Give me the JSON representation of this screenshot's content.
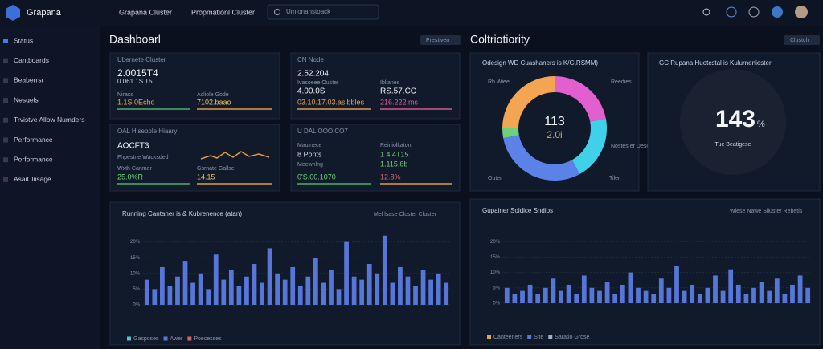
{
  "header": {
    "brand": "Grapana",
    "tabs": [
      "Grapana Cluster",
      "Propmationl Cluster"
    ],
    "search": "Umionanstoack"
  },
  "sidebar": {
    "items": [
      "Status",
      "Cantboards",
      "Beaberrsr",
      "Nesgels",
      "Trvistve Allow Numders",
      "Performance",
      "Performance",
      "AsaiCliisage"
    ]
  },
  "dashboard": {
    "title": "Dashboarl",
    "button": "Prestiven"
  },
  "stat_panels": [
    {
      "title": "Ubernete Cluster",
      "primary": "2.0015T4",
      "secondary": "0.061.1S.T5",
      "left_label": "Nirass",
      "left_value": "1.1S.0Echo",
      "right_label": "Acliole Gode",
      "right_value": "7102.baao"
    },
    {
      "title": "CN Node",
      "primary": "2.52.204",
      "left_label": "Ivasoeee Ouster",
      "left_big": "4.00.0S",
      "right_label": "Iblianes",
      "right_big": "RS.57.CO",
      "left_value": "03.10.17.03.aslbbles",
      "right_value": "216.222.ms"
    },
    {
      "title": "OAL Hiseople Hiaary",
      "primary": "AOCFT3",
      "secondary": "Fhpestrle Wacksded",
      "left_label": "Wxth Canmer",
      "left_value": "25.0%R",
      "right_label": "Gsrnate Gallse",
      "right_value": "14.15"
    },
    {
      "title": "U DAL OOO.CO7",
      "left_label": "Maulnece",
      "right_label": "Reiniolkaton",
      "left_big": "8 Ponts",
      "right_big": "1 4 4T15",
      "left_sub": "Meewnlng",
      "right_sub": "1.115.6b",
      "left_value": "0'S.00.1070",
      "right_value": "12.8%"
    }
  ],
  "connectivity": {
    "title": "Coltriotiority",
    "button": "Clustch"
  },
  "donut": {
    "title": "Odesign WD Cuashaners is K/G,RSMM)",
    "center_value": "113",
    "center_sub": "2.0i",
    "labels": [
      "Rb Wiee",
      "Reedies",
      "Nostes er Descaller",
      "Outer",
      "Tiler"
    ],
    "values": [
      22,
      20,
      30,
      3,
      25
    ],
    "colors": [
      "#e25fd0",
      "#3fd0ea",
      "#5b82e6",
      "#6fcf7a",
      "#f3a552"
    ]
  },
  "gauge": {
    "title": "GC Rupana Huotcstal is Kulurneniester",
    "value": "143",
    "unit": "%",
    "sub": "Tue Beatigese"
  },
  "bar_panels": [
    {
      "title": "Running Cantaner is & Kubrenence (atan)",
      "legend_title": "Mel lsase Cluster Cluster",
      "ylim": [
        0,
        25
      ],
      "yticks": [
        {
          "value": 0,
          "label": "0%"
        },
        {
          "value": 5,
          "label": "5%"
        },
        {
          "value": 10,
          "label": "10%"
        },
        {
          "value": 15,
          "label": "15%"
        },
        {
          "value": 20,
          "label": "20%"
        }
      ],
      "color": "#5876d8",
      "values": [
        8,
        5,
        12,
        6,
        9,
        14,
        7,
        10,
        5,
        16,
        8,
        11,
        6,
        9,
        13,
        7,
        18,
        10,
        8,
        12,
        6,
        9,
        15,
        7,
        11,
        5,
        20,
        9,
        8,
        13,
        10,
        22,
        7,
        12,
        9,
        6,
        11,
        8,
        10,
        7
      ],
      "legend": [
        {
          "name": "Gasposes",
          "color": "#4fc3c8"
        },
        {
          "name": "Awer",
          "color": "#5876d8"
        },
        {
          "name": "Poecesses",
          "color": "#e0605a"
        }
      ]
    },
    {
      "title": "Gupainer Soldice Sndios",
      "legend_title": "Wiese Nawe Siluster Rebetis",
      "ylim": [
        0,
        25
      ],
      "yticks": [
        {
          "value": 0,
          "label": "0%"
        },
        {
          "value": 5,
          "label": "5%"
        },
        {
          "value": 10,
          "label": "10%"
        },
        {
          "value": 15,
          "label": "15%"
        },
        {
          "value": 20,
          "label": "20%"
        }
      ],
      "color": "#5876d8",
      "values": [
        5,
        3,
        4,
        6,
        3,
        5,
        8,
        4,
        6,
        3,
        9,
        5,
        4,
        7,
        3,
        6,
        10,
        5,
        4,
        3,
        8,
        5,
        12,
        4,
        6,
        3,
        5,
        9,
        4,
        11,
        6,
        3,
        5,
        7,
        4,
        8,
        3,
        6,
        9,
        5
      ],
      "legend": [
        {
          "name": "Canteeners",
          "color": "#e8a24e"
        },
        {
          "name": "Site",
          "color": "#5876d8"
        },
        {
          "name": "Saratio Grose",
          "color": "#a8b0c0"
        }
      ]
    }
  ]
}
